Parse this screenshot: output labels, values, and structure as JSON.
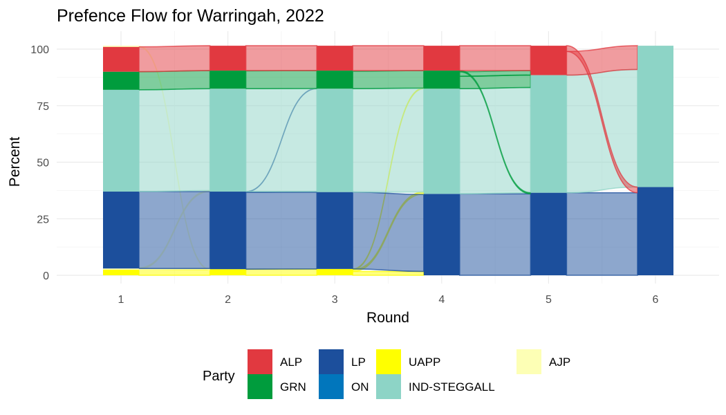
{
  "chart_data": {
    "type": "alluvial",
    "title": "Prefence Flow for Warringah, 2022",
    "xlabel": "Round",
    "ylabel": "Percent",
    "x": [
      "1",
      "2",
      "3",
      "4",
      "5",
      "6"
    ],
    "ylim": [
      0,
      101.5
    ],
    "yticks": [
      0,
      25,
      50,
      75,
      100
    ],
    "grid": true,
    "legend_position": "bottom",
    "legend_title": "Party",
    "parties": [
      {
        "name": "ALP",
        "color": "#E13940"
      },
      {
        "name": "GRN",
        "color": "#009C3D"
      },
      {
        "name": "LP",
        "color": "#1C4F9C"
      },
      {
        "name": "ON",
        "color": "#0176BC"
      },
      {
        "name": "UAPP",
        "color": "#FFFF00"
      },
      {
        "name": "IND-STEGGALL",
        "color": "#8DD4C6"
      },
      {
        "name": "AJP",
        "color": "#FDFFB5"
      }
    ],
    "rounds": [
      [
        {
          "party": "UAPP",
          "value": 2.5
        },
        {
          "party": "AJP",
          "value": 0.5
        },
        {
          "party": "LP",
          "value": 34
        },
        {
          "party": "IND-STEGGALL",
          "value": 45
        },
        {
          "party": "GRN",
          "value": 8
        },
        {
          "party": "ALP",
          "value": 11
        },
        {
          "party": "AJP",
          "value": 0.5
        }
      ],
      [
        {
          "party": "UAPP",
          "value": 2.7
        },
        {
          "party": "LP",
          "value": 34.3
        },
        {
          "party": "IND-STEGGALL",
          "value": 45.5
        },
        {
          "party": "GRN",
          "value": 8
        },
        {
          "party": "ALP",
          "value": 11
        }
      ],
      [
        {
          "party": "UAPP",
          "value": 2.8
        },
        {
          "party": "LP",
          "value": 34
        },
        {
          "party": "IND-STEGGALL",
          "value": 45.7
        },
        {
          "party": "GRN",
          "value": 8
        },
        {
          "party": "ALP",
          "value": 11
        }
      ],
      [
        {
          "party": "LP",
          "value": 36
        },
        {
          "party": "IND-STEGGALL",
          "value": 46.5
        },
        {
          "party": "GRN",
          "value": 8
        },
        {
          "party": "ALP",
          "value": 11
        }
      ],
      [
        {
          "party": "LP",
          "value": 36.5
        },
        {
          "party": "IND-STEGGALL",
          "value": 52
        },
        {
          "party": "ALP",
          "value": 13
        }
      ],
      [
        {
          "party": "LP",
          "value": 39
        },
        {
          "party": "IND-STEGGALL",
          "value": 62.5
        }
      ]
    ],
    "flows": [
      {
        "round": 1,
        "from": "UAPP",
        "to": "UAPP",
        "value": 2.5
      },
      {
        "round": 1,
        "from": "AJP",
        "to": "LP",
        "value": 0.3
      },
      {
        "round": 1,
        "from": "AJP",
        "to": "IND-STEGGALL",
        "value": 0.5
      },
      {
        "round": 1,
        "from": "AJP",
        "to": "UAPP",
        "value": 0.2
      },
      {
        "round": 1,
        "from": "LP",
        "to": "LP",
        "value": 34
      },
      {
        "round": 1,
        "from": "IND-STEGGALL",
        "to": "IND-STEGGALL",
        "value": 45
      },
      {
        "round": 1,
        "from": "GRN",
        "to": "GRN",
        "value": 8
      },
      {
        "round": 1,
        "from": "ALP",
        "to": "ALP",
        "value": 11
      },
      {
        "round": 2,
        "from": "UAPP",
        "to": "UAPP",
        "value": 2.7
      },
      {
        "round": 2,
        "from": "LP",
        "to": "LP",
        "value": 34
      },
      {
        "round": 2,
        "from": "LP",
        "to": "IND-STEGGALL",
        "value": 0.2
      },
      {
        "round": 2,
        "from": "LP",
        "to": "GRN",
        "value": 0.1
      },
      {
        "round": 2,
        "from": "IND-STEGGALL",
        "to": "IND-STEGGALL",
        "value": 45.5
      },
      {
        "round": 2,
        "from": "GRN",
        "to": "GRN",
        "value": 7.9
      },
      {
        "round": 2,
        "from": "ALP",
        "to": "ALP",
        "value": 11
      },
      {
        "round": 3,
        "from": "UAPP",
        "to": "LP",
        "value": 1.7
      },
      {
        "round": 3,
        "from": "UAPP",
        "to": "IND-STEGGALL",
        "value": 0.8
      },
      {
        "round": 3,
        "from": "UAPP",
        "to": "GRN",
        "value": 0.3
      },
      {
        "round": 3,
        "from": "LP",
        "to": "LP",
        "value": 34
      },
      {
        "round": 3,
        "from": "IND-STEGGALL",
        "to": "IND-STEGGALL",
        "value": 45.7
      },
      {
        "round": 3,
        "from": "GRN",
        "to": "GRN",
        "value": 7.7
      },
      {
        "round": 3,
        "from": "ALP",
        "to": "ALP",
        "value": 11
      },
      {
        "round": 4,
        "from": "LP",
        "to": "LP",
        "value": 36
      },
      {
        "round": 4,
        "from": "IND-STEGGALL",
        "to": "IND-STEGGALL",
        "value": 46.5
      },
      {
        "round": 4,
        "from": "GRN",
        "to": "IND-STEGGALL",
        "value": 5.5
      },
      {
        "round": 4,
        "from": "GRN",
        "to": "ALP",
        "value": 2
      },
      {
        "round": 4,
        "from": "GRN",
        "to": "LP",
        "value": 0.5
      },
      {
        "round": 4,
        "from": "ALP",
        "to": "ALP",
        "value": 11
      },
      {
        "round": 5,
        "from": "LP",
        "to": "LP",
        "value": 36.5
      },
      {
        "round": 5,
        "from": "IND-STEGGALL",
        "to": "IND-STEGGALL",
        "value": 52
      },
      {
        "round": 5,
        "from": "ALP",
        "to": "IND-STEGGALL",
        "value": 10.5
      },
      {
        "round": 5,
        "from": "ALP",
        "to": "LP",
        "value": 2.5
      }
    ]
  }
}
